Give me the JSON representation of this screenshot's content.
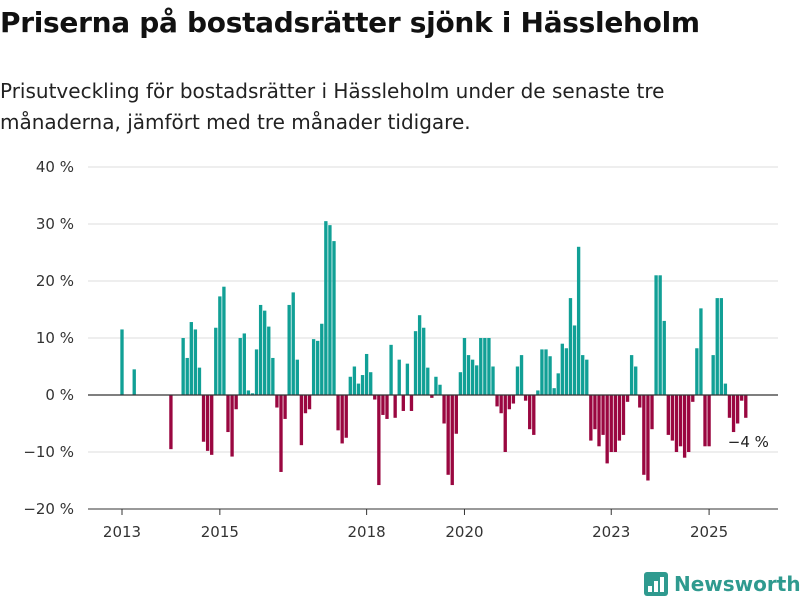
{
  "title": "Priserna på bostadsrätter sjönk i Hässleholm",
  "subtitle": "Prisutveckling för bostadsrätter i Hässleholm under de senaste tre månaderna, jämfört med tre månader tidigare.",
  "brand": {
    "name": "Newsworthy",
    "icon": "bar-chart-logo-icon"
  },
  "colors": {
    "positive": "#11a096",
    "negative": "#9a0740",
    "axis": "#333333",
    "grid": "#dddddd",
    "brand": "#2f9a8f"
  },
  "chart_data": {
    "type": "bar",
    "title": "",
    "xlabel": "",
    "ylabel": "",
    "ylim": [
      -20,
      40
    ],
    "y_ticks": [
      -20,
      -10,
      0,
      10,
      20,
      30,
      40
    ],
    "y_tick_labels": [
      "−20 %",
      "−10 %",
      "0 %",
      "10 %",
      "20 %",
      "30 %",
      "40 %"
    ],
    "x_ticks": [
      2013,
      2015,
      2018,
      2020,
      2023,
      2025
    ],
    "x_tick_labels": [
      "2013",
      "2015",
      "2018",
      "2020",
      "2023",
      "2025"
    ],
    "start": "2013-01",
    "unit": "%",
    "annotation": {
      "text": "−4 %",
      "target": "last"
    },
    "values": [
      11.5,
      0,
      0,
      4.5,
      0,
      0,
      0,
      0,
      0,
      0,
      0,
      0,
      -9.5,
      0,
      0,
      10,
      6.5,
      12.8,
      11.5,
      4.8,
      -8.2,
      -9.8,
      -10.5,
      11.8,
      17.3,
      19,
      -6.5,
      -10.8,
      -2.5,
      10,
      10.8,
      0.8,
      0.3,
      8,
      15.8,
      14.8,
      12,
      6.5,
      -2.2,
      -13.5,
      -4.2,
      15.8,
      18,
      6.2,
      -8.8,
      -3.2,
      -2.5,
      9.8,
      9.5,
      12.5,
      30.5,
      29.8,
      27,
      -6.2,
      -8.5,
      -7.5,
      3.2,
      5,
      2,
      3.5,
      7.2,
      4,
      -0.8,
      -15.8,
      -3.5,
      -4.2,
      8.8,
      -4,
      6.2,
      -2.8,
      5.5,
      -2.8,
      11.2,
      14,
      11.8,
      4.8,
      -0.5,
      3.2,
      1.8,
      -5,
      -14,
      -15.8,
      -6.8,
      4,
      10,
      7,
      6.2,
      5.2,
      10,
      10,
      10,
      5,
      -2,
      -3.2,
      -10,
      -2.5,
      -1.5,
      5,
      7,
      -1,
      -6,
      -7,
      0.8,
      8,
      8,
      6.8,
      1.2,
      3.8,
      9,
      8.2,
      17,
      12.2,
      26,
      7,
      6.2,
      -8,
      -6,
      -9,
      -7,
      -12,
      -10,
      -10,
      -8,
      -7,
      -1.2,
      7,
      5,
      -2.2,
      -14,
      -15,
      -6,
      21,
      21,
      13,
      -7,
      -8,
      -10,
      -9,
      -11,
      -10,
      -1.2,
      8.2,
      15.2,
      -9,
      -9,
      7,
      17,
      17,
      2,
      -4,
      -6.5,
      -5,
      -1,
      -4
    ]
  }
}
